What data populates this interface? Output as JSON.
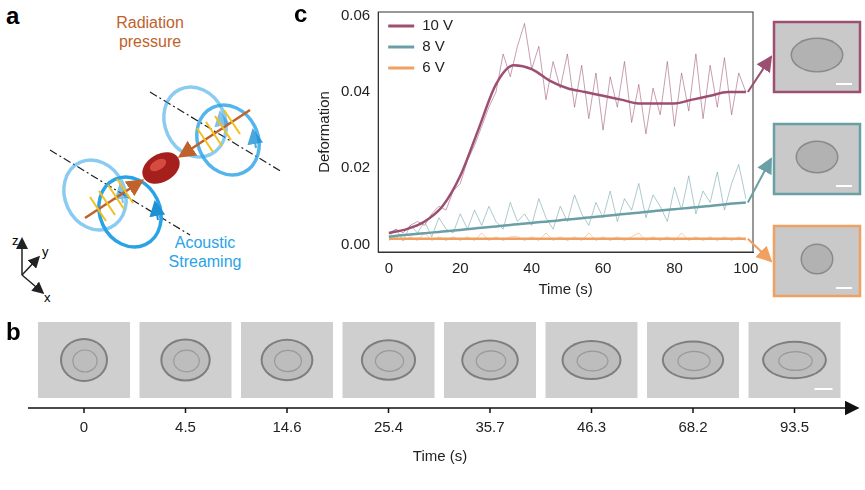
{
  "panel_a": {
    "letter": "a",
    "radiation_label": "Radiation pressure",
    "streaming_label": "Acoustic Streaming",
    "axes": [
      "z",
      "y",
      "x"
    ]
  },
  "panel_b": {
    "letter": "b",
    "times": [
      0,
      4.5,
      14.6,
      25.4,
      35.7,
      46.3,
      68.2,
      93.5
    ],
    "axis_label": "Time (s)"
  },
  "chart_data": {
    "letter": "c",
    "type": "line",
    "x_label": "Time (s)",
    "y_label": "Deformation",
    "xlim": [
      -3,
      102
    ],
    "xticks": [
      0,
      20,
      40,
      60,
      80,
      100
    ],
    "ylim": [
      -0.002,
      0.061
    ],
    "yticks": [
      {
        "value": 0,
        "label": "0.00"
      },
      {
        "value": 0.02,
        "label": "0.02"
      },
      {
        "value": 0.04,
        "label": "0.04"
      },
      {
        "value": 0.06,
        "label": "0.06"
      }
    ],
    "grid": false,
    "legend": "upper left",
    "x": [
      0,
      5,
      10,
      15,
      20,
      25,
      30,
      35,
      40,
      45,
      50,
      55,
      60,
      65,
      70,
      75,
      80,
      85,
      90,
      95,
      100
    ],
    "raw_x": [
      0,
      2,
      4,
      6,
      8,
      10,
      12,
      14,
      16,
      18,
      20,
      22,
      24,
      26,
      28,
      30,
      32,
      34,
      36,
      38,
      40,
      42,
      44,
      46,
      48,
      50,
      52,
      54,
      56,
      58,
      60,
      62,
      64,
      66,
      68,
      70,
      72,
      74,
      76,
      78,
      80,
      82,
      84,
      86,
      88,
      90,
      92,
      94,
      96,
      98,
      100
    ],
    "series": [
      {
        "name": "10 V",
        "color": "#9d4f72",
        "values": [
          0.003,
          0.004,
          0.006,
          0.01,
          0.018,
          0.03,
          0.042,
          0.047,
          0.046,
          0.043,
          0.041,
          0.04,
          0.039,
          0.038,
          0.037,
          0.037,
          0.037,
          0.038,
          0.039,
          0.04,
          0.04
        ],
        "raw_values": [
          0.003,
          0.004,
          0.003,
          0.005,
          0.006,
          0.005,
          0.008,
          0.01,
          0.009,
          0.014,
          0.016,
          0.022,
          0.026,
          0.031,
          0.036,
          0.04,
          0.05,
          0.044,
          0.052,
          0.058,
          0.046,
          0.052,
          0.038,
          0.048,
          0.041,
          0.05,
          0.036,
          0.047,
          0.033,
          0.045,
          0.03,
          0.044,
          0.036,
          0.048,
          0.032,
          0.042,
          0.029,
          0.041,
          0.034,
          0.048,
          0.031,
          0.045,
          0.035,
          0.05,
          0.033,
          0.047,
          0.036,
          0.049,
          0.034,
          0.045,
          0.04
        ]
      },
      {
        "name": "8 V",
        "color": "#6a9fa6",
        "values": [
          0.002,
          0.0025,
          0.0029,
          0.0034,
          0.0038,
          0.0043,
          0.0047,
          0.0052,
          0.0056,
          0.0061,
          0.0065,
          0.007,
          0.0074,
          0.0079,
          0.0083,
          0.0088,
          0.0092,
          0.0097,
          0.0101,
          0.0106,
          0.011
        ],
        "raw_values": [
          0.002,
          0.004,
          0.001,
          0.005,
          0.003,
          0.006,
          0.002,
          0.007,
          0.004,
          0.003,
          0.008,
          0.004,
          0.009,
          0.005,
          0.01,
          0.006,
          0.004,
          0.011,
          0.006,
          0.008,
          0.005,
          0.012,
          0.007,
          0.004,
          0.01,
          0.006,
          0.013,
          0.008,
          0.005,
          0.011,
          0.007,
          0.014,
          0.006,
          0.012,
          0.009,
          0.016,
          0.007,
          0.013,
          0.01,
          0.006,
          0.015,
          0.009,
          0.018,
          0.008,
          0.014,
          0.011,
          0.019,
          0.009,
          0.016,
          0.021,
          0.012
        ]
      },
      {
        "name": "6 V",
        "color": "#f0a060",
        "values": [
          0.0015,
          0.0015,
          0.0015,
          0.0015,
          0.0015,
          0.0015,
          0.0015,
          0.0015,
          0.0015,
          0.0015,
          0.0015,
          0.0015,
          0.0015,
          0.0015,
          0.0015,
          0.0015,
          0.0015,
          0.0015,
          0.0015,
          0.0015,
          0.0015
        ],
        "raw_values": [
          0.001,
          0.002,
          0.001,
          0.002,
          0.001,
          0.003,
          0.001,
          0.002,
          0.001,
          0.002,
          0.001,
          0.002,
          0.001,
          0.003,
          0.001,
          0.002,
          0.001,
          0.002,
          0.002,
          0.001,
          0.002,
          0.001,
          0.003,
          0.001,
          0.002,
          0.001,
          0.002,
          0.001,
          0.003,
          0.001,
          0.002,
          0.001,
          0.002,
          0.001,
          0.002,
          0.003,
          0.001,
          0.002,
          0.001,
          0.002,
          0.001,
          0.003,
          0.001,
          0.002,
          0.001,
          0.002,
          0.001,
          0.002,
          0.001,
          0.002,
          0.001
        ]
      }
    ]
  }
}
